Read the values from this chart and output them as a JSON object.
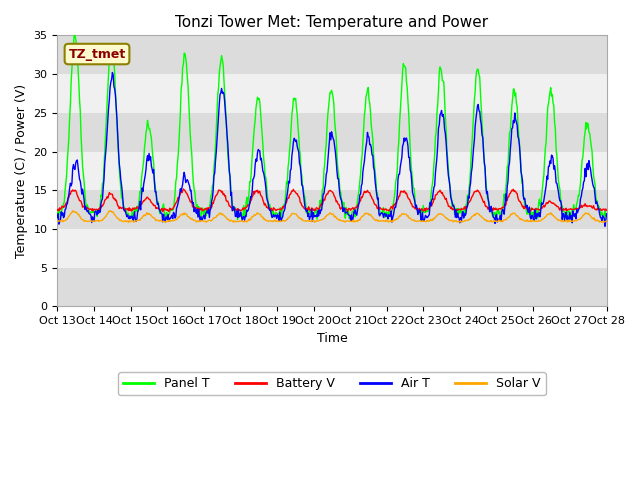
{
  "title": "Tonzi Tower Met: Temperature and Power",
  "xlabel": "Time",
  "ylabel": "Temperature (C) / Power (V)",
  "xlim": [
    0,
    15
  ],
  "ylim": [
    0,
    35
  ],
  "yticks": [
    0,
    5,
    10,
    15,
    20,
    25,
    30,
    35
  ],
  "xtick_labels": [
    "Oct 13",
    "Oct 14",
    "Oct 15",
    "Oct 16",
    "Oct 17",
    "Oct 18",
    "Oct 19",
    "Oct 20",
    "Oct 21",
    "Oct 22",
    "Oct 23",
    "Oct 24",
    "Oct 25",
    "Oct 26",
    "Oct 27",
    "Oct 28"
  ],
  "xtick_positions": [
    0,
    1,
    2,
    3,
    4,
    5,
    6,
    7,
    8,
    9,
    10,
    11,
    12,
    13,
    14,
    15
  ],
  "colors": {
    "panel_t": "#00FF00",
    "battery_v": "#FF0000",
    "air_t": "#0000FF",
    "solar_v": "#FFA500"
  },
  "band_colors": [
    "#DCDCDC",
    "#F0F0F0"
  ],
  "legend_labels": [
    "Panel T",
    "Battery V",
    "Air T",
    "Solar V"
  ],
  "annotation_text": "TZ_tmet",
  "annotation_color": "#8B0000",
  "annotation_bg": "#FFFACD",
  "fig_size": [
    6.4,
    4.8
  ],
  "title_fontsize": 11,
  "label_fontsize": 9,
  "tick_fontsize": 8
}
